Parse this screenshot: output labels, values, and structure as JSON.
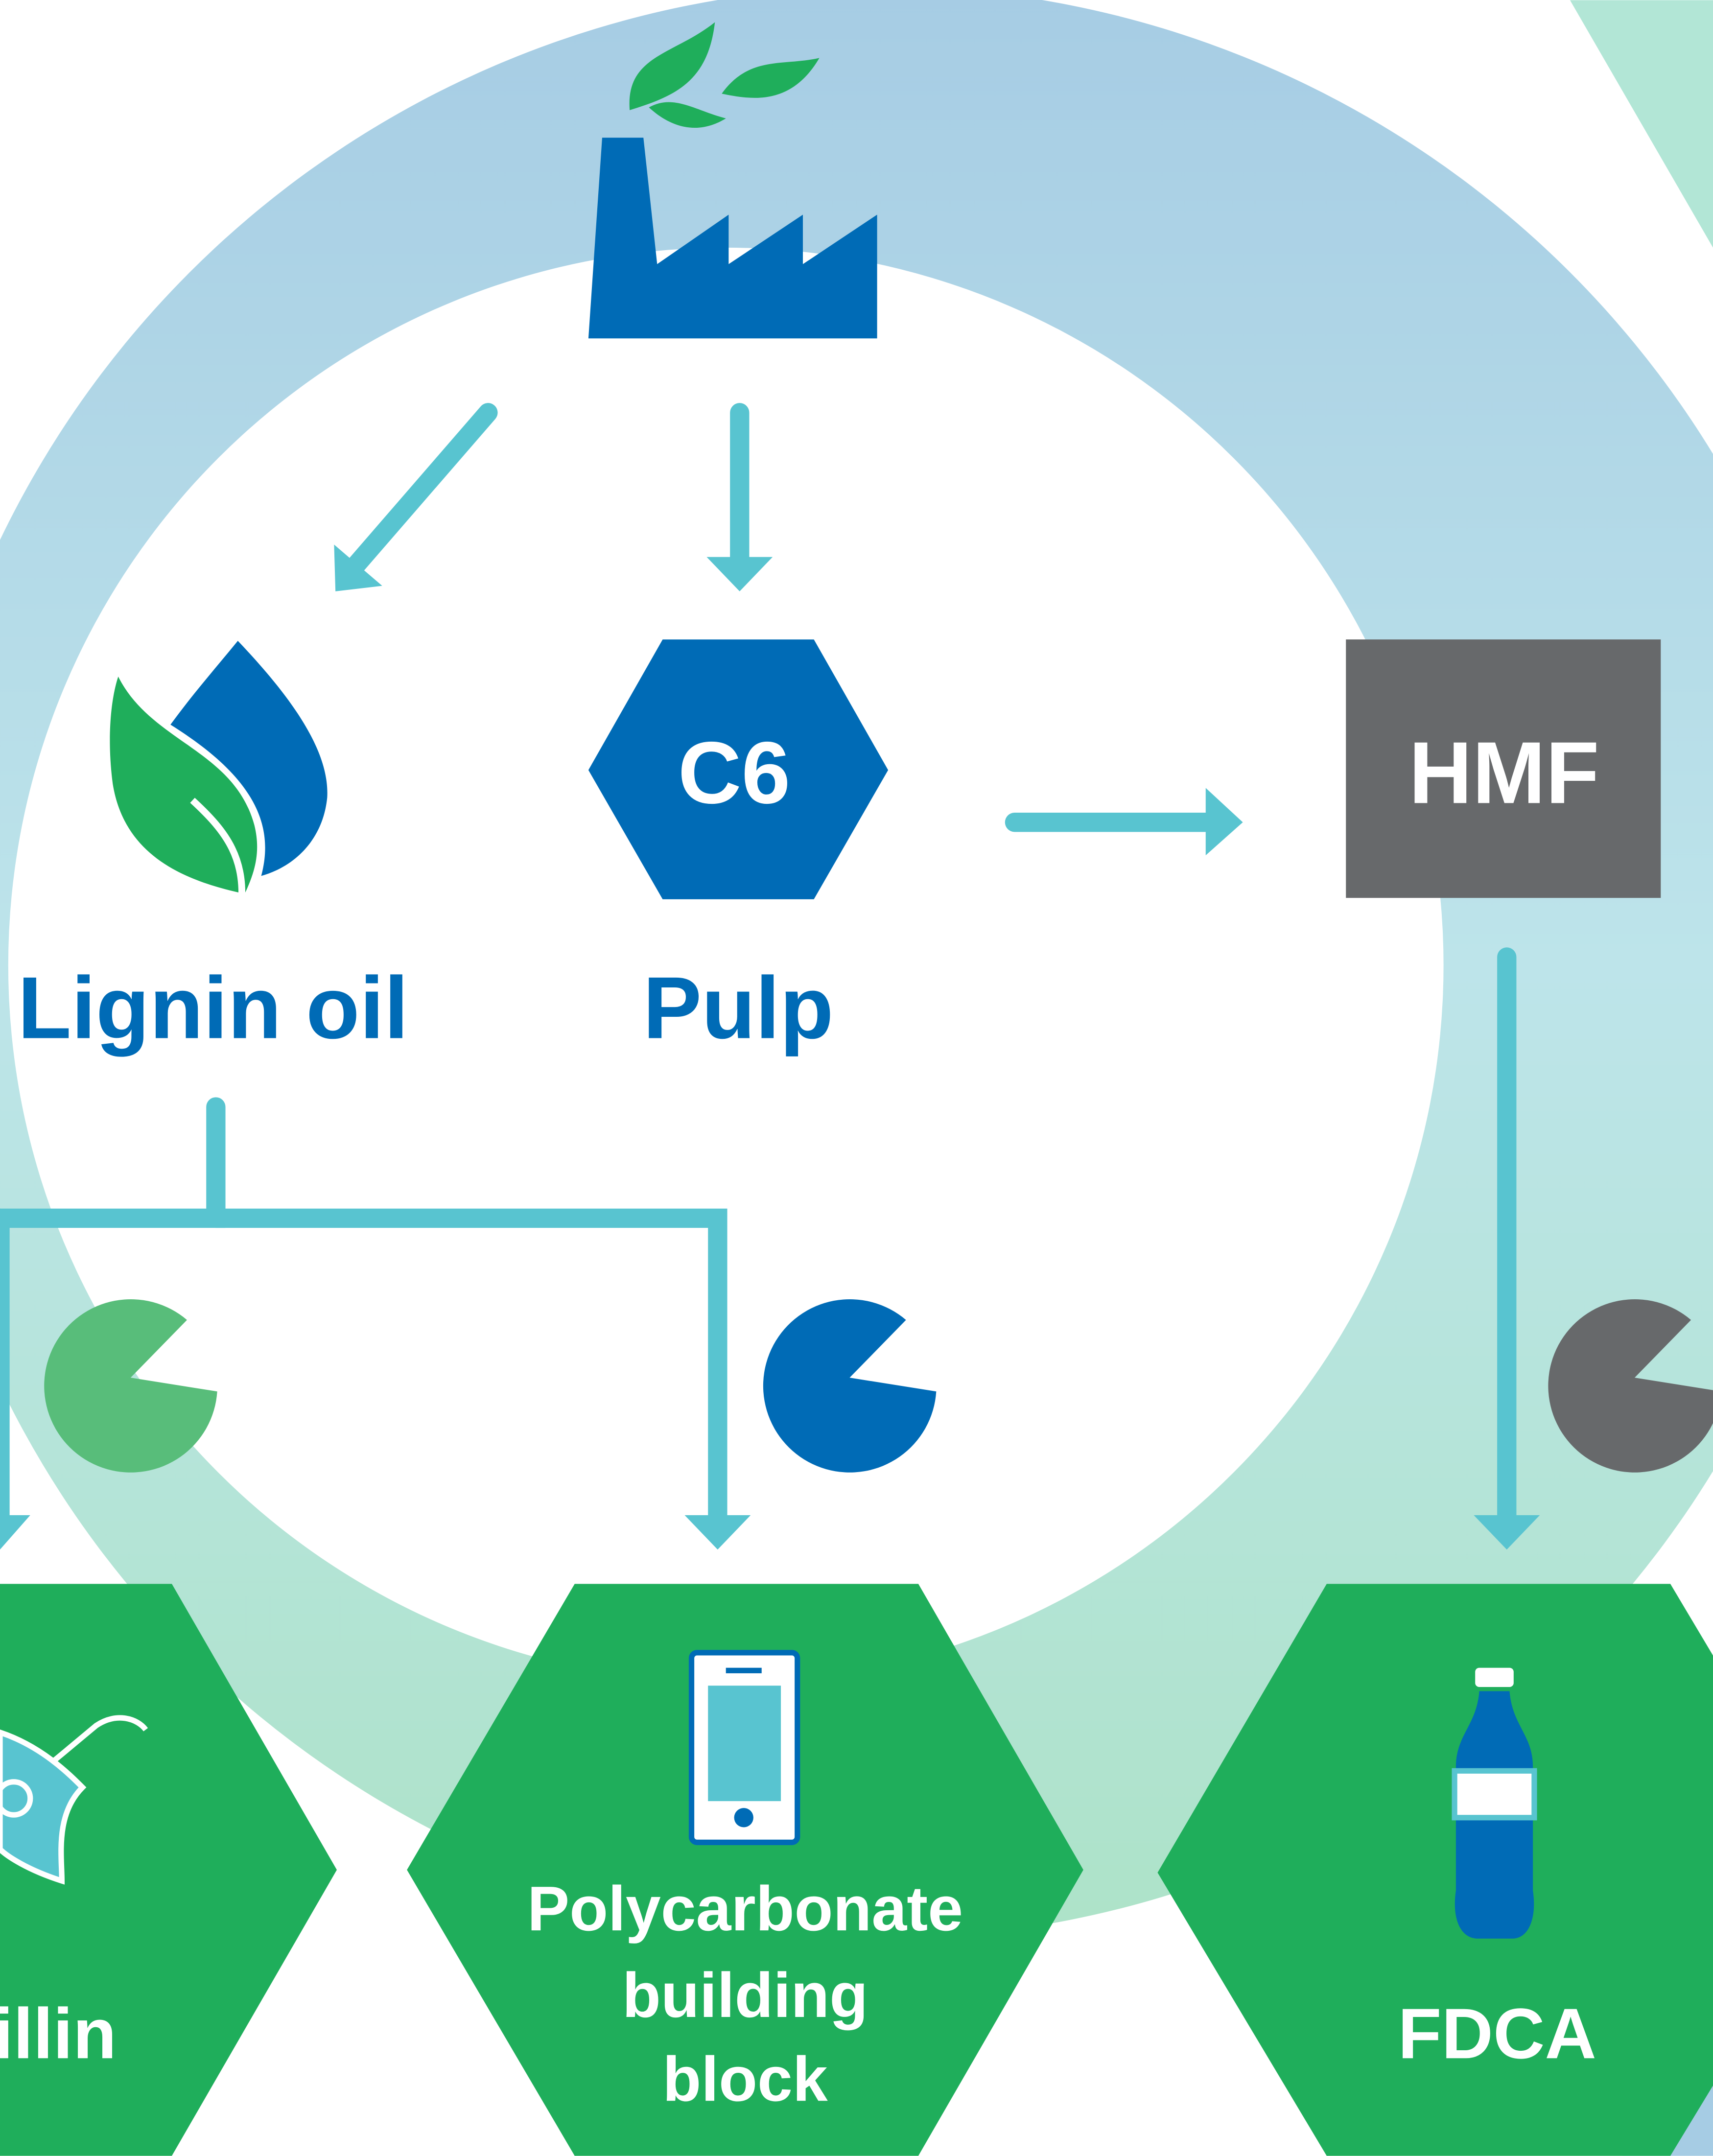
{
  "nodes": [
    {
      "label": "Lignin oil"
    },
    {
      "label": "C6"
    },
    {
      "label": "Pulp"
    },
    {
      "label": "HMF"
    },
    {
      "label": "illin"
    },
    {
      "lines": [
        "Polycarbonate",
        "building",
        "block"
      ]
    },
    {
      "label": "FDCA"
    }
  ]
}
